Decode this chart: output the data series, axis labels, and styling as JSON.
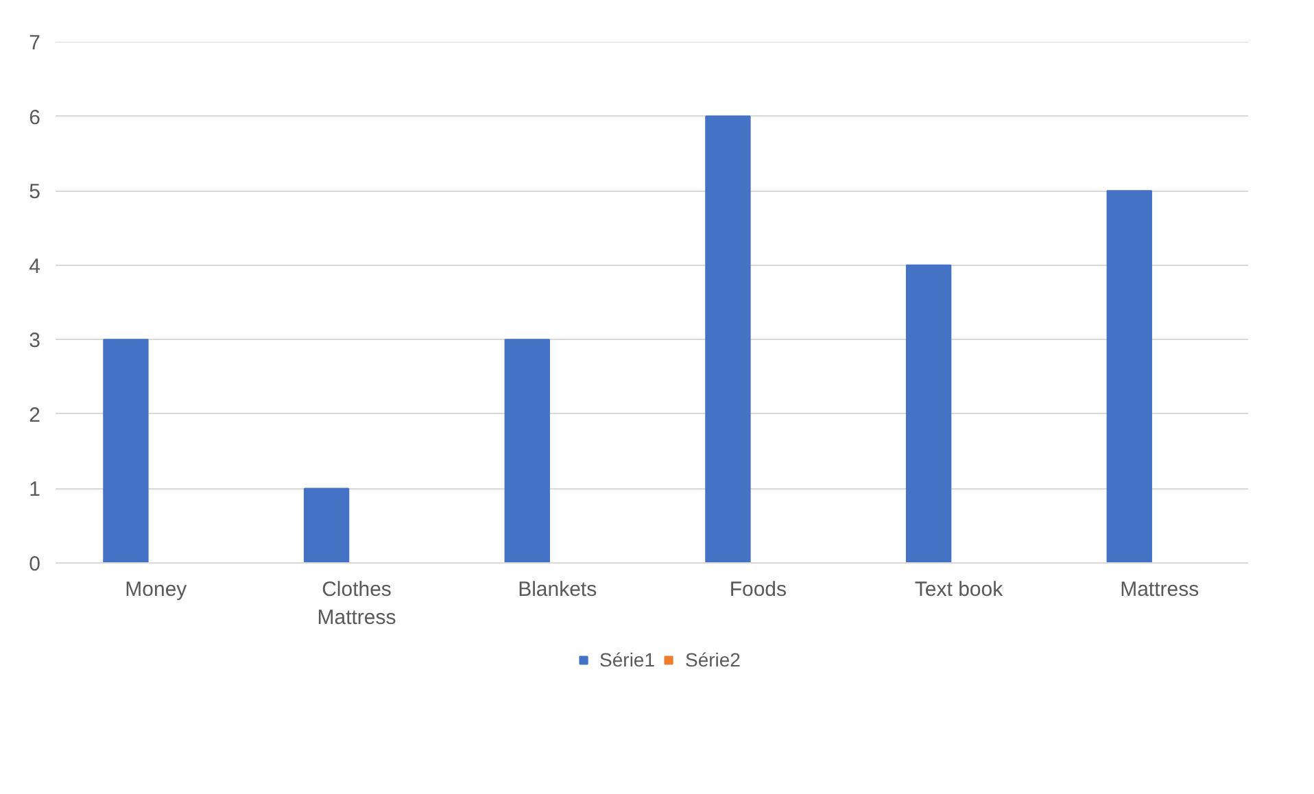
{
  "chart_data": {
    "type": "bar",
    "categories": [
      "Money",
      "Clothes Mattress",
      "Blankets",
      "Foods",
      "Text book",
      "Mattress"
    ],
    "series": [
      {
        "name": "Série1",
        "color": "#4472c4",
        "values": [
          3,
          1,
          3,
          6,
          4,
          5
        ]
      },
      {
        "name": "Série2",
        "color": "#ed7d31",
        "values": [
          null,
          null,
          null,
          null,
          null,
          null
        ]
      }
    ],
    "ylim": [
      0,
      7
    ],
    "yticks": [
      0,
      1,
      2,
      3,
      4,
      5,
      6,
      7
    ],
    "grid": "y",
    "legend": "bottom"
  }
}
